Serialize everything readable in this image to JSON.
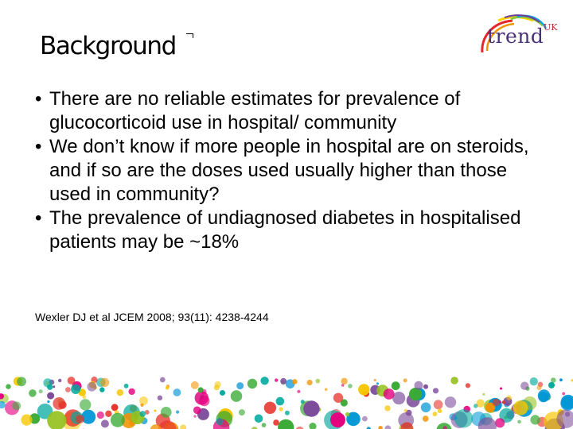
{
  "slide": {
    "title": "Background",
    "bullets": [
      "There are no reliable estimates for prevalence of glucocorticoid use in hospital/ community",
      "We don’t know if more people in hospital are on steroids, and if so are the doses used usually higher than those used in community?",
      "The prevalence of undiagnosed diabetes in hospitalised patients may be ~18%"
    ],
    "bullet_symbol": "•",
    "citation": "Wexler DJ et al JCEM 2008; 93(11): 4238-4244"
  },
  "logo": {
    "word": "trend",
    "superscript": "UK",
    "colors": [
      "#e8262a",
      "#f39200",
      "#ffd200",
      "#8dc63f",
      "#1ba1e2",
      "#6a3d9a"
    ]
  },
  "decoration": {
    "dot_colors": [
      "#e6332a",
      "#f39200",
      "#f7c600",
      "#95c11f",
      "#3aaa35",
      "#0096d6",
      "#7c4b9a",
      "#e5007e",
      "#00a99d"
    ]
  }
}
